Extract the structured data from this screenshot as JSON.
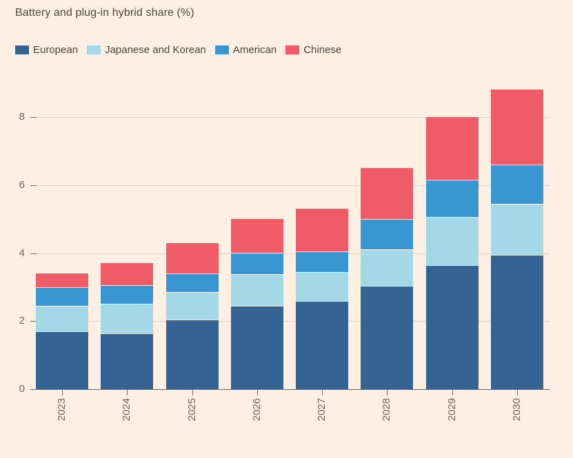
{
  "title": "Battery and plug-in hybrid share (%)",
  "colors": {
    "background": "#fdf0e3",
    "gridline": "#ddd0c4",
    "axis": "#66605b",
    "tick": "#6b645e",
    "axis_label_text": "#6b635d",
    "title_text": "#4b4540",
    "legend_text": "#45413c"
  },
  "chart_data": {
    "type": "bar",
    "stacked": true,
    "title": "Battery and plug-in hybrid share (%)",
    "xlabel": "",
    "ylabel": "",
    "categories": [
      "2023",
      "2024",
      "2025",
      "2026",
      "2027",
      "2028",
      "2029",
      "2030"
    ],
    "series": [
      {
        "name": "European",
        "color": "#346394",
        "values": [
          1.7,
          1.65,
          2.05,
          2.45,
          2.6,
          3.05,
          3.65,
          3.95
        ]
      },
      {
        "name": "Japanese and Korean",
        "color": "#a5d8e6",
        "values": [
          0.75,
          0.85,
          0.8,
          0.95,
          0.85,
          1.05,
          1.4,
          1.5
        ]
      },
      {
        "name": "American",
        "color": "#3897d1",
        "values": [
          0.55,
          0.55,
          0.55,
          0.6,
          0.6,
          0.9,
          1.1,
          1.15
        ]
      },
      {
        "name": "Chinese",
        "color": "#ef5b66",
        "values": [
          0.4,
          0.65,
          0.9,
          1.0,
          1.25,
          1.5,
          1.85,
          2.2
        ]
      }
    ],
    "totals": [
      3.4,
      3.7,
      4.3,
      5.0,
      5.3,
      6.5,
      8.0,
      8.8
    ],
    "yticks": [
      0,
      2,
      4,
      6,
      8
    ],
    "ylim": [
      0,
      9.2
    ],
    "grid": true,
    "legend_position": "top",
    "x_tick_label_rotation_deg": -90
  }
}
